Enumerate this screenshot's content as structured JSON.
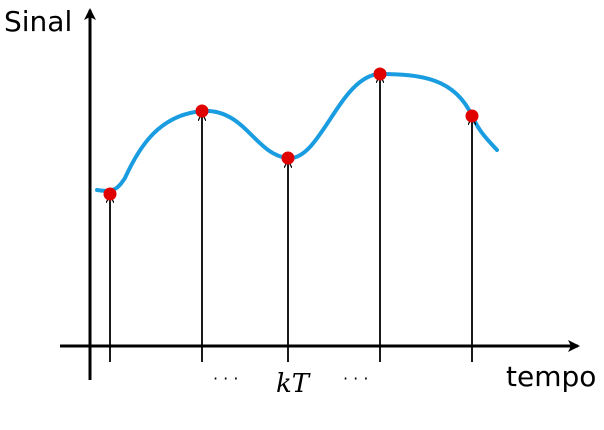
{
  "labels": {
    "y_axis": "Sinal",
    "x_axis": "tempo",
    "ellipsis_left": "· · ·",
    "sample_label": "kT",
    "ellipsis_right": "· · ·"
  },
  "colors": {
    "signal": "#1a9de0",
    "sample": "#e00000",
    "axis": "#000000"
  },
  "samples": [
    {
      "name": "sample-1"
    },
    {
      "name": "sample-2"
    },
    {
      "name": "sample-k"
    },
    {
      "name": "sample-4"
    },
    {
      "name": "sample-5"
    }
  ]
}
